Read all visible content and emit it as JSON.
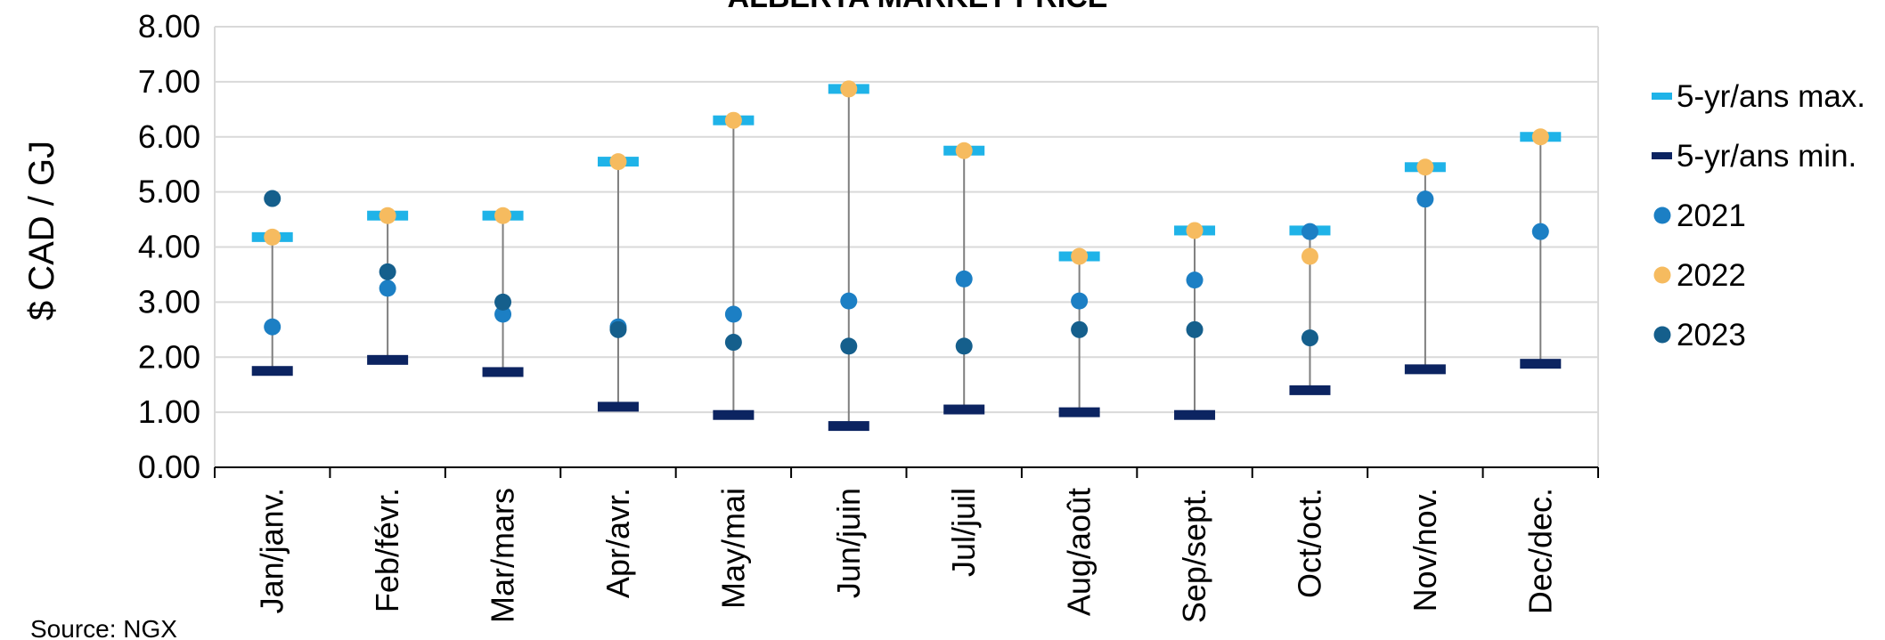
{
  "chart_data": {
    "type": "scatter",
    "title": "ALBERTA MARKET PRICE",
    "ylabel": "$ CAD / GJ",
    "xlabel": "",
    "ylim": [
      0,
      8
    ],
    "yticks": [
      "0.00",
      "1.00",
      "2.00",
      "3.00",
      "4.00",
      "5.00",
      "6.00",
      "7.00",
      "8.00"
    ],
    "grid": true,
    "legend_position": "right",
    "categories": [
      "Jan/janv.",
      "Feb/févr.",
      "Mar/mars",
      "Apr/avr.",
      "May/mai",
      "Jun/juin",
      "Jul/juil",
      "Aug/août",
      "Sep/sept.",
      "Oct/oct.",
      "Nov/nov.",
      "Dec/dec."
    ],
    "series": [
      {
        "name": "5-yr/ans max.",
        "marker": "dash",
        "color": "#1fb3e8",
        "values": [
          4.18,
          4.57,
          4.57,
          5.55,
          6.3,
          6.87,
          5.75,
          3.83,
          4.3,
          4.3,
          5.45,
          6.0
        ]
      },
      {
        "name": "5-yr/ans min.",
        "marker": "dash",
        "color": "#0c2461",
        "values": [
          1.75,
          1.95,
          1.73,
          1.1,
          0.95,
          0.75,
          1.05,
          1.0,
          0.95,
          1.4,
          1.78,
          1.88
        ]
      },
      {
        "name": "2021",
        "marker": "circle",
        "color": "#1c7fc4",
        "values": [
          2.55,
          3.25,
          2.78,
          2.55,
          2.78,
          3.02,
          3.42,
          3.02,
          3.4,
          4.28,
          4.87,
          4.28
        ]
      },
      {
        "name": "2022",
        "marker": "circle",
        "color": "#f6bb5f",
        "values": [
          4.18,
          4.57,
          4.57,
          5.55,
          6.3,
          6.87,
          5.75,
          3.83,
          4.3,
          3.83,
          5.45,
          6.0
        ]
      },
      {
        "name": "2023",
        "marker": "circle",
        "color": "#155f8c",
        "values": [
          4.88,
          3.55,
          3.0,
          2.5,
          2.27,
          2.2,
          2.2,
          2.5,
          2.5,
          2.35,
          null,
          null
        ]
      }
    ],
    "source": "Source: NGX"
  },
  "colors": {
    "gridline": "#d9d9d9",
    "range_line": "#7f7f7f",
    "axis": "#000000"
  }
}
